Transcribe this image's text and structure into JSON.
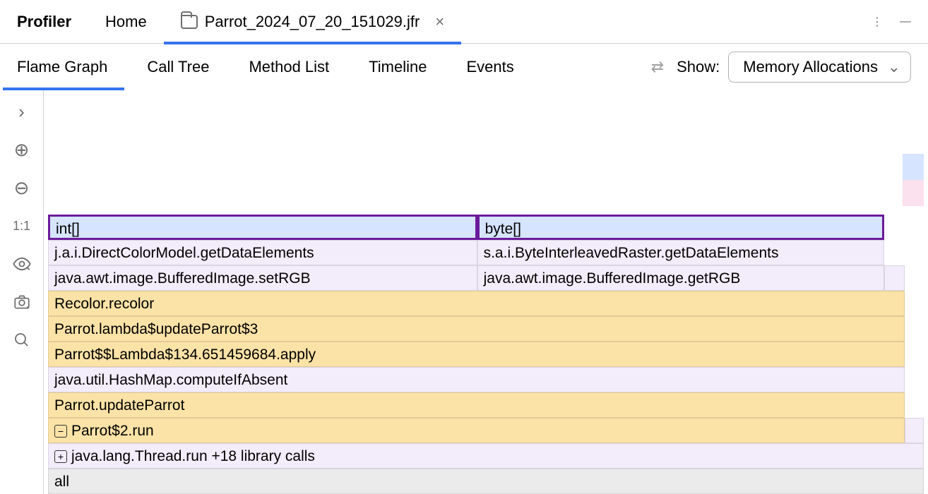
{
  "colors": {
    "accent": "#3574f0",
    "border": "#d1d1d1",
    "icon_muted": "#6e6e6e",
    "highlight_border": "#6a1b9a",
    "row_blue": "#d6e4ff",
    "row_purple": "#f3ecfb",
    "row_yellow": "#fbe2a7",
    "row_grey": "#ebebeb",
    "mini_blue": "#d6e4ff",
    "mini_pink": "#fbe0ed"
  },
  "top_tabs": {
    "title": "Profiler",
    "items": [
      {
        "label": "Home",
        "active": false,
        "closable": false
      },
      {
        "label": "Parrot_2024_07_20_151029.jfr",
        "active": true,
        "closable": true,
        "has_folder_icon": true
      }
    ]
  },
  "sub_tabs": {
    "items": [
      {
        "label": "Flame Graph",
        "active": true
      },
      {
        "label": "Call Tree",
        "active": false
      },
      {
        "label": "Method List",
        "active": false
      },
      {
        "label": "Timeline",
        "active": false
      },
      {
        "label": "Events",
        "active": false
      }
    ],
    "show_label": "Show:",
    "show_value": "Memory Allocations"
  },
  "sidebar_tools": [
    {
      "name": "expand",
      "glyph": "›"
    },
    {
      "name": "add",
      "glyph": "⊕"
    },
    {
      "name": "remove",
      "glyph": "⊖"
    },
    {
      "name": "one-to-one",
      "glyph": "1:1",
      "is_text": true
    },
    {
      "name": "presentation",
      "glyph": "👁"
    },
    {
      "name": "screenshot",
      "glyph": "📷"
    },
    {
      "name": "search",
      "glyph": "🔍"
    }
  ],
  "flame": {
    "rows": [
      {
        "segments": [
          {
            "label": "all",
            "color": "row_grey",
            "width_pct": 100
          }
        ]
      },
      {
        "segments": [
          {
            "label": "java.lang.Thread.run  +18 library calls",
            "color": "row_purple",
            "width_pct": 100,
            "prefix_icon": "expand"
          }
        ]
      },
      {
        "segments": [
          {
            "label": "Parrot$2.run",
            "color": "row_yellow",
            "width_pct": 97.8,
            "prefix_icon": "collapse"
          },
          {
            "label": "",
            "color": "row_purple",
            "width_pct": 2.2
          }
        ]
      },
      {
        "segments": [
          {
            "label": "Parrot.updateParrot",
            "color": "row_yellow",
            "width_pct": 97.8
          }
        ]
      },
      {
        "segments": [
          {
            "label": "java.util.HashMap.computeIfAbsent",
            "color": "row_purple",
            "width_pct": 97.8
          }
        ]
      },
      {
        "segments": [
          {
            "label": "Parrot$$Lambda$134.651459684.apply",
            "color": "row_yellow",
            "width_pct": 97.8
          }
        ]
      },
      {
        "segments": [
          {
            "label": "Parrot.lambda$updateParrot$3",
            "color": "row_yellow",
            "width_pct": 97.8
          }
        ]
      },
      {
        "segments": [
          {
            "label": "Recolor.recolor",
            "color": "row_yellow",
            "width_pct": 97.8
          }
        ]
      },
      {
        "segments": [
          {
            "label": "java.awt.image.BufferedImage.setRGB",
            "color": "row_purple",
            "width_pct": 49
          },
          {
            "label": "java.awt.image.BufferedImage.getRGB",
            "color": "row_purple",
            "width_pct": 46.5
          },
          {
            "label": "",
            "color": "row_purple",
            "width_pct": 2.3
          }
        ]
      },
      {
        "segments": [
          {
            "label": "j.a.i.DirectColorModel.getDataElements",
            "color": "row_purple",
            "width_pct": 49
          },
          {
            "label": "s.a.i.ByteInterleavedRaster.getDataElements",
            "color": "row_purple",
            "width_pct": 46.5
          }
        ]
      },
      {
        "highlighted": true,
        "segments": [
          {
            "label": "int[]",
            "color": "row_blue",
            "width_pct": 49,
            "highlight": true
          },
          {
            "label": "byte[]",
            "color": "row_blue",
            "width_pct": 46.5,
            "highlight": true
          }
        ]
      }
    ]
  }
}
